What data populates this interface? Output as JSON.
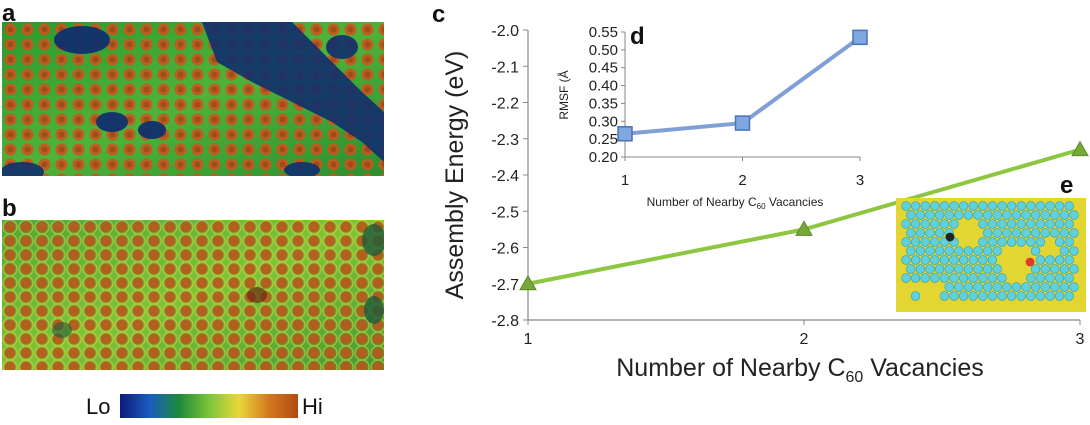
{
  "panels": {
    "a": "a",
    "b": "b",
    "c": "c",
    "d": "d",
    "e": "e"
  },
  "colorbar": {
    "low_label": "Lo",
    "high_label": "Hi",
    "colors": [
      "#0d1a7a",
      "#1a5cc0",
      "#1f8a3a",
      "#7cc43a",
      "#e8d83a",
      "#d47a1e",
      "#b04a14"
    ]
  },
  "colors": {
    "main_line": "#8dc63f",
    "main_marker": "#77a83a",
    "inset_line": "#7f9fd6",
    "inset_marker_fill": "#7fa7e0",
    "inset_marker_edge": "#4a72b8",
    "stm_bg": "#1f8a2a",
    "stm_spot": "#c8561c",
    "stm_hole": "#10306e",
    "substrate": "#e3d632",
    "molecule": "#5fd0dc"
  },
  "chart_data": [
    {
      "type": "line",
      "panel": "c",
      "x": [
        1,
        2,
        3
      ],
      "y": [
        -2.7,
        -2.55,
        -2.33
      ],
      "xlabel_main": "Number of Nearby C",
      "xlabel_sub": "60",
      "xlabel_tail": " Vacancies",
      "ylabel": "Assembly Energy (eV)",
      "xlim": [
        1,
        3
      ],
      "ylim": [
        -2.8,
        -2.0
      ],
      "xticks": [
        "1",
        "2",
        "3"
      ],
      "yticks": [
        "-2.0",
        "-2.1",
        "-2.2",
        "-2.3",
        "-2.4",
        "-2.5",
        "-2.6",
        "-2.7",
        "-2.8"
      ],
      "marker": "triangle",
      "grid": false
    },
    {
      "type": "line",
      "panel": "d",
      "x": [
        1,
        2,
        3
      ],
      "y": [
        0.265,
        0.295,
        0.535
      ],
      "xlabel_main": "Number of Nearby C",
      "xlabel_sub": "60",
      "xlabel_tail": " Vacancies",
      "ylabel": "RMSF (Å",
      "xlim": [
        1,
        3
      ],
      "ylim": [
        0.2,
        0.55
      ],
      "xticks": [
        "1",
        "2",
        "3"
      ],
      "yticks": [
        "0.55",
        "0.50",
        "0.45",
        "0.40",
        "0.35",
        "0.30",
        "0.25",
        "0.20"
      ],
      "marker": "square",
      "grid": false
    }
  ]
}
